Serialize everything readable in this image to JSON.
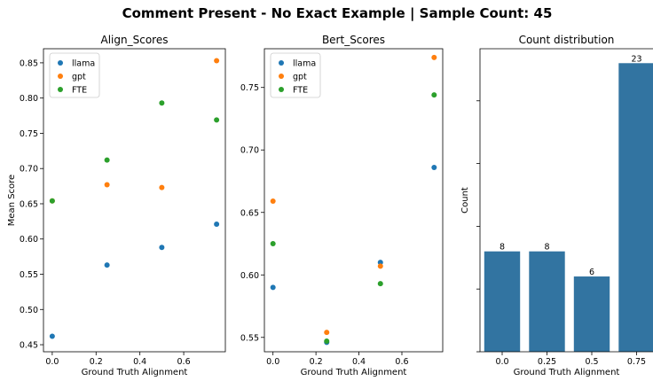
{
  "figure": {
    "suptitle": "Comment Present - No Exact Example | Sample Count: 45"
  },
  "chart_data": [
    {
      "type": "scatter",
      "title": "Align_Scores",
      "xlabel": "Ground Truth Alignment",
      "ylabel": "Mean Score",
      "xlim": [
        -0.04,
        0.79
      ],
      "ylim": [
        0.44,
        0.87
      ],
      "xticks": [
        0.0,
        0.2,
        0.4,
        0.6
      ],
      "xtick_labels": [
        "0.0",
        "0.2",
        "0.4",
        "0.6"
      ],
      "yticks": [
        0.45,
        0.5,
        0.55,
        0.6,
        0.65,
        0.7,
        0.75,
        0.8,
        0.85
      ],
      "ytick_labels": [
        "0.45",
        "0.50",
        "0.55",
        "0.60",
        "0.65",
        "0.70",
        "0.75",
        "0.80",
        "0.85"
      ],
      "legend": "top-left",
      "grid": false,
      "series": [
        {
          "name": "llama",
          "color": "#1f77b4",
          "x": [
            0.0,
            0.25,
            0.5,
            0.75
          ],
          "y": [
            0.462,
            0.563,
            0.588,
            0.621
          ]
        },
        {
          "name": "gpt",
          "color": "#ff7f0e",
          "x": [
            0.0,
            0.25,
            0.5,
            0.75
          ],
          "y": [
            0.654,
            0.677,
            0.673,
            0.853
          ]
        },
        {
          "name": "FTE",
          "color": "#2ca02c",
          "x": [
            0.0,
            0.25,
            0.5,
            0.75
          ],
          "y": [
            0.654,
            0.712,
            0.793,
            0.769
          ]
        }
      ]
    },
    {
      "type": "scatter",
      "title": "Bert_Scores",
      "xlabel": "Ground Truth Alignment",
      "ylabel": "",
      "xlim": [
        -0.04,
        0.79
      ],
      "ylim": [
        0.5385,
        0.781
      ],
      "xticks": [
        0.0,
        0.2,
        0.4,
        0.6
      ],
      "xtick_labels": [
        "0.0",
        "0.2",
        "0.4",
        "0.6"
      ],
      "yticks": [
        0.55,
        0.6,
        0.65,
        0.7,
        0.75
      ],
      "ytick_labels": [
        "0.55",
        "0.60",
        "0.65",
        "0.70",
        "0.75"
      ],
      "legend": "top-left",
      "grid": false,
      "series": [
        {
          "name": "llama",
          "color": "#1f77b4",
          "x": [
            0.0,
            0.25,
            0.5,
            0.75
          ],
          "y": [
            0.59,
            0.546,
            0.61,
            0.686
          ]
        },
        {
          "name": "gpt",
          "color": "#ff7f0e",
          "x": [
            0.0,
            0.25,
            0.5,
            0.75
          ],
          "y": [
            0.659,
            0.554,
            0.607,
            0.774
          ]
        },
        {
          "name": "FTE",
          "color": "#2ca02c",
          "x": [
            0.0,
            0.25,
            0.5,
            0.75
          ],
          "y": [
            0.625,
            0.547,
            0.593,
            0.744
          ]
        }
      ]
    },
    {
      "type": "bar",
      "title": "Count distribution",
      "xlabel": "Ground Truth Alignment",
      "ylabel": "Count",
      "categories": [
        "0.0",
        "0.25",
        "0.5",
        "0.75"
      ],
      "values": [
        8,
        8,
        6,
        23
      ],
      "data_labels": [
        "8",
        "8",
        "6",
        "23"
      ],
      "color": "#3274a1",
      "ylim": [
        0,
        24.15
      ],
      "yticks": [
        0,
        5,
        10,
        15,
        20
      ],
      "ytick_labels": [
        "",
        "",
        "",
        "",
        ""
      ],
      "grid": false
    }
  ]
}
